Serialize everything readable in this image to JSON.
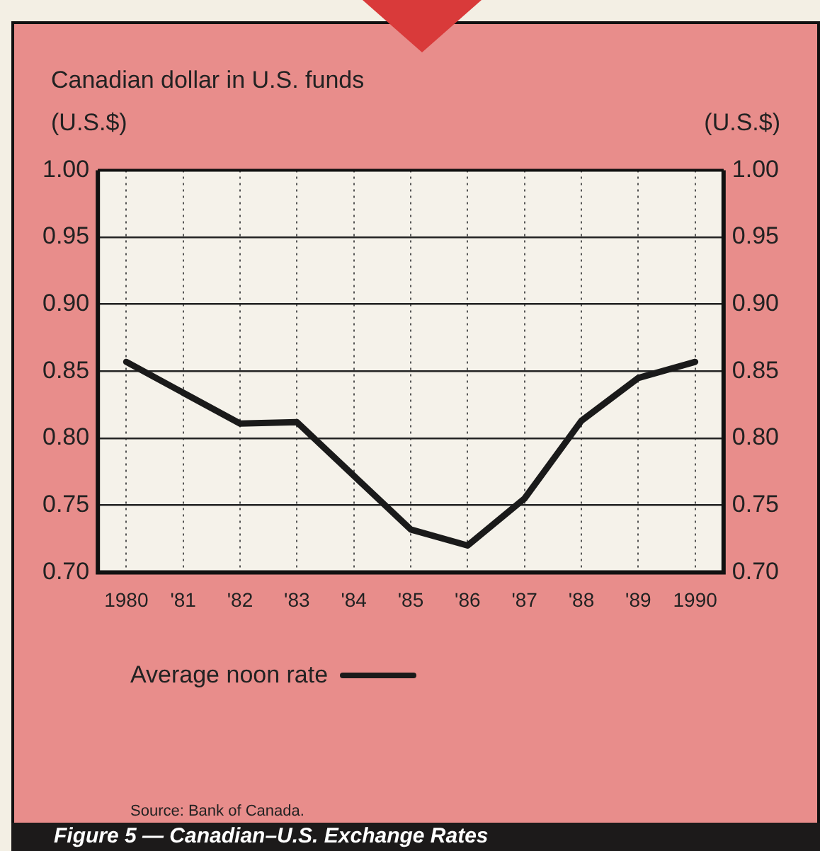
{
  "chart_data": {
    "type": "line",
    "title": "Figure 5 — Canadian–U.S. Exchange Rates",
    "subtitle": "Canadian dollar in U.S. funds",
    "ylabel": "(U.S.$)",
    "y2label": "(U.S.$)",
    "categories": [
      "1980",
      "'81",
      "'82",
      "'83",
      "'84",
      "'85",
      "'86",
      "'87",
      "'88",
      "'89",
      "1990"
    ],
    "series": [
      {
        "name": "Average noon rate",
        "color": "#1a1a1a",
        "values": [
          0.857,
          0.834,
          0.811,
          0.812,
          0.772,
          0.732,
          0.72,
          0.755,
          0.813,
          0.845,
          0.857
        ]
      }
    ],
    "ylim": [
      0.7,
      1.0
    ],
    "yticks": [
      {
        "value": 0.7,
        "label": "0.70"
      },
      {
        "value": 0.75,
        "label": "0.75"
      },
      {
        "value": 0.8,
        "label": "0.80"
      },
      {
        "value": 0.85,
        "label": "0.85"
      },
      {
        "value": 0.9,
        "label": "0.90"
      },
      {
        "value": 0.95,
        "label": "0.95"
      },
      {
        "value": 1.0,
        "label": "1.00"
      }
    ],
    "y2lim": [
      0.7,
      1.0
    ],
    "y2ticks": [
      {
        "value": 0.7,
        "label": "0.70"
      },
      {
        "value": 0.75,
        "label": "0.75"
      },
      {
        "value": 0.8,
        "label": "0.80"
      },
      {
        "value": 0.85,
        "label": "0.85"
      },
      {
        "value": 0.9,
        "label": "0.90"
      },
      {
        "value": 0.95,
        "label": "0.95"
      },
      {
        "value": 1.0,
        "label": "1.00"
      }
    ],
    "grid": true,
    "legend": "bottom",
    "line_style": "solid",
    "annotations": [
      "Source: Bank of Canada."
    ]
  }
}
